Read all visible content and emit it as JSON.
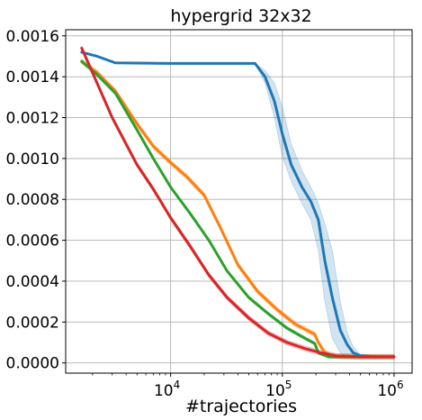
{
  "chart_data": {
    "type": "line",
    "title": "hypergrid 32x32",
    "xlabel": "#trajectories",
    "ylabel": "",
    "xscale": "log",
    "xlim": [
      1150,
      1450000
    ],
    "ylim": [
      -5e-05,
      0.00163
    ],
    "grid": true,
    "legend": "none",
    "x_ticks": [
      {
        "value": 10000,
        "base": "10",
        "exp": "4"
      },
      {
        "value": 100000,
        "base": "10",
        "exp": "5"
      },
      {
        "value": 1000000,
        "base": "10",
        "exp": "6"
      }
    ],
    "y_ticks": [
      {
        "value": 0.0,
        "label": "0.0000"
      },
      {
        "value": 0.0002,
        "label": "0.0002"
      },
      {
        "value": 0.0004,
        "label": "0.0004"
      },
      {
        "value": 0.0006,
        "label": "0.0006"
      },
      {
        "value": 0.0008,
        "label": "0.0008"
      },
      {
        "value": 0.001,
        "label": "0.0010"
      },
      {
        "value": 0.0012,
        "label": "0.0012"
      },
      {
        "value": 0.0014,
        "label": "0.0014"
      },
      {
        "value": 0.0016,
        "label": "0.0016"
      }
    ],
    "series": [
      {
        "color": "#1f77b4",
        "points": [
          [
            1600,
            0.00152
          ],
          [
            2200,
            0.0015
          ],
          [
            3200,
            0.001468
          ],
          [
            5000,
            0.001467
          ],
          [
            10000,
            0.001465
          ],
          [
            30000,
            0.001465
          ],
          [
            57000,
            0.001465
          ],
          [
            70000,
            0.0014
          ],
          [
            85000,
            0.00128
          ],
          [
            100000,
            0.00112
          ],
          [
            120000,
            0.00097
          ],
          [
            150000,
            0.00086
          ],
          [
            180000,
            0.00079
          ],
          [
            210000,
            0.0007
          ],
          [
            240000,
            0.0005
          ],
          [
            280000,
            0.00032
          ],
          [
            330000,
            0.00016
          ],
          [
            380000,
            9e-05
          ],
          [
            430000,
            5e-05
          ],
          [
            500000,
            3.5e-05
          ],
          [
            700000,
            3e-05
          ],
          [
            1000000,
            3e-05
          ]
        ],
        "band_upper": [
          [
            57000,
            0.001465
          ],
          [
            70000,
            0.00143
          ],
          [
            85000,
            0.00137
          ],
          [
            100000,
            0.00125
          ],
          [
            120000,
            0.00107
          ],
          [
            150000,
            0.00094
          ],
          [
            180000,
            0.00086
          ],
          [
            210000,
            0.00078
          ],
          [
            240000,
            0.00068
          ],
          [
            280000,
            0.00055
          ],
          [
            330000,
            0.0003
          ],
          [
            380000,
            0.00015
          ],
          [
            430000,
            8e-05
          ],
          [
            500000,
            4e-05
          ]
        ],
        "band_lower": [
          [
            57000,
            0.001465
          ],
          [
            70000,
            0.00137
          ],
          [
            85000,
            0.0012
          ],
          [
            100000,
            0.00101
          ],
          [
            120000,
            0.00089
          ],
          [
            150000,
            0.00078
          ],
          [
            180000,
            0.0007
          ],
          [
            210000,
            0.00055
          ],
          [
            240000,
            0.0003
          ],
          [
            280000,
            0.00012
          ],
          [
            330000,
            5e-05
          ],
          [
            380000,
            3e-05
          ],
          [
            430000,
            3e-05
          ],
          [
            500000,
            3e-05
          ]
        ]
      },
      {
        "color": "#ff7f0e",
        "points": [
          [
            1600,
            0.001475
          ],
          [
            2200,
            0.00142
          ],
          [
            3200,
            0.00133
          ],
          [
            5000,
            0.00117
          ],
          [
            7000,
            0.00106
          ],
          [
            10000,
            0.00098
          ],
          [
            14000,
            0.00091
          ],
          [
            20000,
            0.00082
          ],
          [
            28000,
            0.00066
          ],
          [
            40000,
            0.00048
          ],
          [
            60000,
            0.00035
          ],
          [
            90000,
            0.00026
          ],
          [
            130000,
            0.00019
          ],
          [
            195000,
            0.00014
          ],
          [
            210000,
            0.0001
          ],
          [
            240000,
            5e-05
          ],
          [
            280000,
            3.5e-05
          ],
          [
            350000,
            3e-05
          ],
          [
            600000,
            3e-05
          ],
          [
            1000000,
            3e-05
          ]
        ],
        "band_width": 1.2e-05
      },
      {
        "color": "#2ca02c",
        "points": [
          [
            1600,
            0.001475
          ],
          [
            2200,
            0.00141
          ],
          [
            3200,
            0.00132
          ],
          [
            5000,
            0.00114
          ],
          [
            7000,
            0.001
          ],
          [
            10000,
            0.00086
          ],
          [
            15000,
            0.00073
          ],
          [
            22000,
            0.0006
          ],
          [
            32000,
            0.00045
          ],
          [
            50000,
            0.00032
          ],
          [
            75000,
            0.00024
          ],
          [
            110000,
            0.00017
          ],
          [
            160000,
            0.00012
          ],
          [
            195000,
            9.5e-05
          ],
          [
            210000,
            5e-05
          ],
          [
            260000,
            3e-05
          ],
          [
            400000,
            3e-05
          ],
          [
            1000000,
            3e-05
          ]
        ],
        "band_width": 8e-06
      },
      {
        "color": "#d62728",
        "points": [
          [
            1600,
            0.00154
          ],
          [
            2000,
            0.00142
          ],
          [
            3000,
            0.0012
          ],
          [
            5000,
            0.00097
          ],
          [
            7000,
            0.00085
          ],
          [
            10000,
            0.00071
          ],
          [
            15000,
            0.00057
          ],
          [
            22000,
            0.00043
          ],
          [
            32000,
            0.00032
          ],
          [
            50000,
            0.00022
          ],
          [
            75000,
            0.000145
          ],
          [
            110000,
            0.0001
          ],
          [
            160000,
            7e-05
          ],
          [
            220000,
            5e-05
          ],
          [
            300000,
            3.5e-05
          ],
          [
            500000,
            3e-05
          ],
          [
            1000000,
            3e-05
          ]
        ],
        "band_width": 1.2e-05
      }
    ]
  }
}
